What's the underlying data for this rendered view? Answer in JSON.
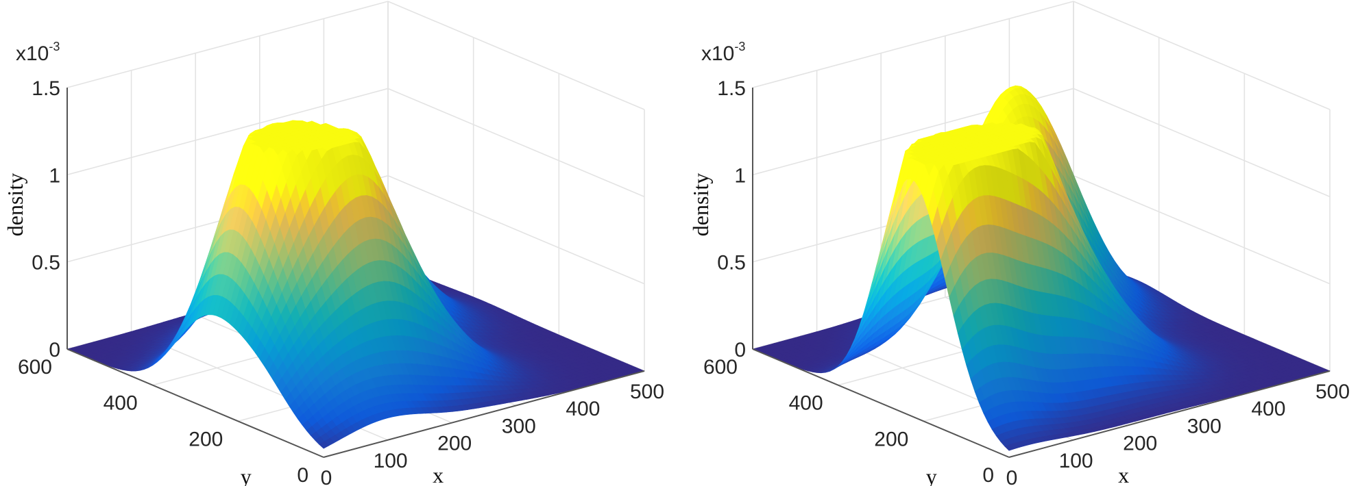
{
  "chart_data": [
    {
      "type": "surface",
      "title": "",
      "xlabel": "x",
      "ylabel": "y",
      "zlabel": "density",
      "z_exponent_label": "x10",
      "z_exponent_power": "-3",
      "xlim": [
        0,
        500
      ],
      "ylim": [
        0,
        600
      ],
      "zlim": [
        0,
        1.5
      ],
      "xticks": [
        "0",
        "100",
        "200",
        "300",
        "400",
        "500"
      ],
      "yticks": [
        "0",
        "200",
        "400",
        "600"
      ],
      "zticks": [
        "0",
        "0.5",
        "1",
        "1.5"
      ],
      "colormap": "parula",
      "grid": true,
      "peaks": [
        {
          "x": 90,
          "y": 280,
          "z": 1.25
        },
        {
          "x": 170,
          "y": 200,
          "z": 1.12
        },
        {
          "x": 210,
          "y": 380,
          "z": 1.1
        },
        {
          "x": 330,
          "y": 380,
          "z": 0.5
        },
        {
          "x": 40,
          "y": 160,
          "z": 0.35
        },
        {
          "x": 260,
          "y": 160,
          "z": 0.3
        },
        {
          "x": 100,
          "y": 70,
          "z": 0.15
        }
      ]
    },
    {
      "type": "surface",
      "title": "",
      "xlabel": "x",
      "ylabel": "y",
      "zlabel": "density",
      "z_exponent_label": "x10",
      "z_exponent_power": "-3",
      "xlim": [
        0,
        500
      ],
      "ylim": [
        0,
        600
      ],
      "zlim": [
        0,
        1.5
      ],
      "xticks": [
        "0",
        "100",
        "200",
        "300",
        "400",
        "500"
      ],
      "yticks": [
        "0",
        "200",
        "400",
        "600"
      ],
      "zticks": [
        "0",
        "0.5",
        "1",
        "1.5"
      ],
      "colormap": "parula",
      "grid": true,
      "peaks": [
        {
          "x": 30,
          "y": 230,
          "z": 0.95
        },
        {
          "x": 90,
          "y": 260,
          "z": 1.05
        },
        {
          "x": 170,
          "y": 230,
          "z": 1.12
        },
        {
          "x": 250,
          "y": 400,
          "z": 1.0
        },
        {
          "x": 330,
          "y": 420,
          "z": 0.72
        },
        {
          "x": 270,
          "y": 200,
          "z": 0.35
        },
        {
          "x": 20,
          "y": 150,
          "z": 0.3
        },
        {
          "x": 400,
          "y": 470,
          "z": 0.15
        }
      ]
    }
  ]
}
